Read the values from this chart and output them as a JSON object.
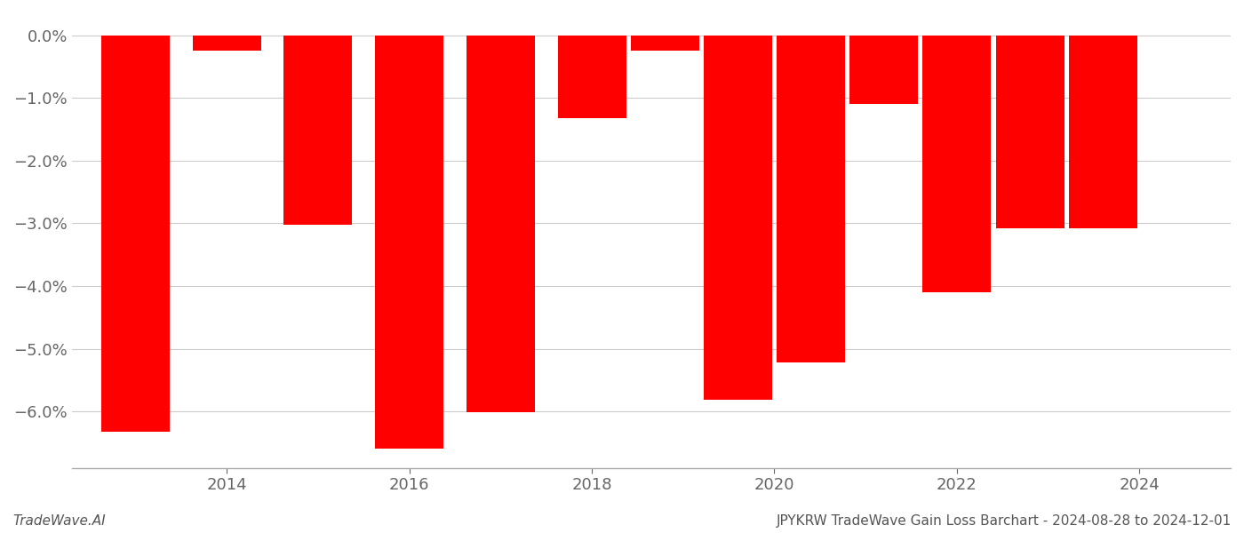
{
  "years": [
    2013,
    2014,
    2015,
    2016,
    2017,
    2018,
    2018.8,
    2019.6,
    2020.4,
    2021.2,
    2022,
    2022.8,
    2023.6
  ],
  "values": [
    -6.32,
    -0.25,
    -3.02,
    -6.6,
    -6.02,
    -1.32,
    -0.25,
    -5.82,
    -5.22,
    -1.1,
    -4.1,
    -3.08,
    -3.08
  ],
  "bar_color": "#ff0000",
  "background_color": "#ffffff",
  "ylabel_color": "#666666",
  "xlabel_color": "#666666",
  "grid_color": "#cccccc",
  "bottom_left_text": "TradeWave.AI",
  "bottom_right_text": "JPYKRW TradeWave Gain Loss Barchart - 2024-08-28 to 2024-12-01",
  "ylim": [
    -6.9,
    0.35
  ],
  "yticks": [
    0.0,
    -1.0,
    -2.0,
    -3.0,
    -4.0,
    -5.0,
    -6.0
  ],
  "ytick_labels": [
    "0.0%",
    "−1.0%",
    "−2.0%",
    "−3.0%",
    "−4.0%",
    "−5.0%",
    "−6.0%"
  ],
  "xticks": [
    2014,
    2016,
    2018,
    2020,
    2022,
    2024
  ],
  "bar_width": 0.75,
  "xlim_left": 2012.3,
  "xlim_right": 2025.0
}
